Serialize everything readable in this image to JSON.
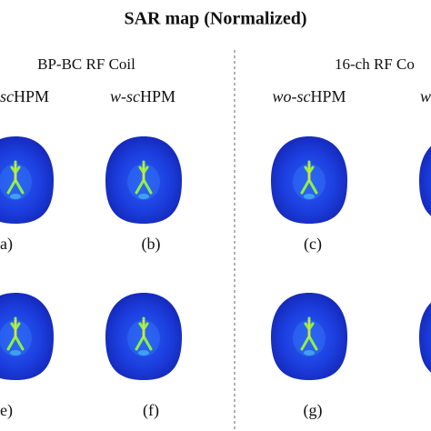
{
  "title": "SAR map (Normalized)",
  "coils": [
    "BP-BC RF Coil",
    "16-ch RF Co"
  ],
  "columns": [
    {
      "prefix": "sc",
      "suffix": "HPM"
    },
    {
      "prefix": "w-sc",
      "suffix": "HPM"
    },
    {
      "prefix": "wo-sc",
      "suffix": "HPM"
    },
    {
      "prefix": "w",
      "suffix": ""
    }
  ],
  "panels": [
    "a)",
    "(b)",
    "(c)",
    "e)",
    "(f)",
    "(g)"
  ]
}
